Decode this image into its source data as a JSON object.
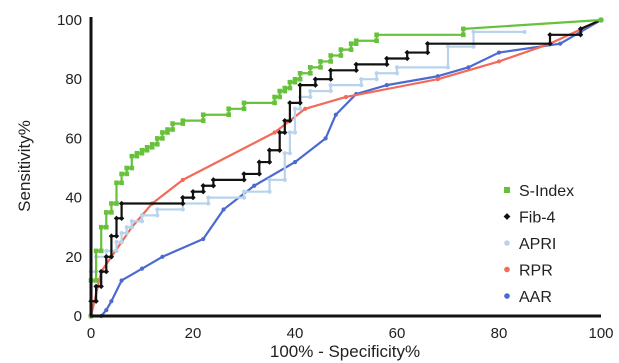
{
  "chart_data": {
    "type": "line",
    "title": "",
    "xlabel": "100% - Specificity%",
    "ylabel": "Sensitivity%",
    "xlim": [
      0,
      100
    ],
    "ylim": [
      0,
      100
    ],
    "x_ticks": [
      "0",
      "20",
      "40",
      "60",
      "80",
      "100"
    ],
    "y_ticks": [
      "0",
      "20",
      "40",
      "60",
      "80",
      "100"
    ],
    "grid": false,
    "legend_position": "bottom-right",
    "series": [
      {
        "name": "S-Index",
        "color": "#66c23a",
        "marker": "square",
        "step": true,
        "x": [
          0,
          0,
          1,
          1,
          2,
          2,
          3,
          3,
          4,
          4,
          5,
          5,
          6,
          6,
          7,
          7,
          8,
          8,
          9,
          9,
          10,
          10,
          11,
          11,
          12,
          12,
          13,
          13,
          14,
          14,
          15,
          15,
          16,
          16,
          18,
          18,
          22,
          22,
          27,
          27,
          30,
          30,
          36,
          36,
          37,
          37,
          38,
          38,
          39,
          39,
          40,
          40,
          41,
          41,
          43,
          43,
          45,
          45,
          47,
          47,
          49,
          49,
          51,
          51,
          52,
          52,
          56,
          56,
          73,
          73,
          100
        ],
        "y": [
          0,
          12,
          12,
          22,
          22,
          30,
          30,
          35,
          35,
          38,
          38,
          45,
          45,
          48,
          48,
          50,
          50,
          54,
          54,
          55,
          55,
          56,
          56,
          57,
          57,
          58,
          58,
          60,
          60,
          62,
          62,
          63,
          63,
          65,
          65,
          66,
          66,
          68,
          68,
          70,
          70,
          72,
          72,
          74,
          74,
          76,
          76,
          77,
          77,
          79,
          79,
          80,
          80,
          82,
          82,
          84,
          84,
          86,
          86,
          88,
          88,
          90,
          90,
          92,
          92,
          93,
          93,
          95,
          95,
          97,
          100
        ]
      },
      {
        "name": "Fib-4",
        "color": "#111111",
        "marker": "diamond",
        "step": true,
        "x": [
          0,
          0,
          1,
          1,
          2,
          2,
          3,
          3,
          4,
          4,
          5,
          5,
          6,
          6,
          18,
          18,
          20,
          20,
          22,
          22,
          24,
          24,
          30,
          30,
          33,
          33,
          35,
          35,
          37,
          37,
          38,
          38,
          39,
          39,
          41,
          41,
          44,
          44,
          47,
          47,
          52,
          52,
          58,
          58,
          62,
          62,
          66,
          66,
          90,
          90,
          96,
          96,
          100
        ],
        "y": [
          0,
          5,
          5,
          10,
          10,
          15,
          15,
          20,
          20,
          27,
          27,
          33,
          33,
          38,
          38,
          40,
          40,
          42,
          42,
          44,
          44,
          46,
          46,
          48,
          48,
          52,
          52,
          56,
          56,
          62,
          62,
          66,
          66,
          72,
          72,
          78,
          78,
          80,
          80,
          83,
          83,
          85,
          85,
          87,
          87,
          89,
          89,
          92,
          92,
          95,
          95,
          97,
          100
        ]
      },
      {
        "name": "APRI",
        "color": "#b9d3ec",
        "marker": "circle",
        "step": true,
        "x": [
          0,
          0,
          1,
          1,
          3,
          3,
          5,
          5,
          6,
          6,
          7,
          7,
          8,
          8,
          10,
          10,
          13,
          13,
          18,
          18,
          23,
          23,
          30,
          30,
          35,
          35,
          38,
          38,
          39,
          39,
          40,
          40,
          41,
          41,
          43,
          43,
          47,
          47,
          53,
          53,
          56,
          56,
          60,
          60,
          70,
          70,
          75,
          75,
          85
        ],
        "y": [
          0,
          15,
          15,
          20,
          20,
          22,
          22,
          25,
          25,
          28,
          28,
          30,
          30,
          32,
          32,
          34,
          34,
          36,
          36,
          38,
          38,
          40,
          40,
          42,
          42,
          46,
          46,
          55,
          55,
          62,
          62,
          70,
          70,
          74,
          74,
          76,
          76,
          78,
          78,
          80,
          80,
          82,
          82,
          84,
          84,
          91,
          91,
          96,
          96
        ]
      },
      {
        "name": "RPR",
        "color": "#f26a5a",
        "marker": "circle",
        "step": false,
        "x": [
          0,
          2,
          4,
          6,
          8,
          10,
          12,
          18,
          36,
          42,
          50,
          68,
          80,
          90,
          100
        ],
        "y": [
          0,
          15,
          20,
          25,
          30,
          34,
          38,
          46,
          62,
          70,
          74,
          80,
          86,
          92,
          100
        ]
      },
      {
        "name": "AAR",
        "color": "#4a6ad0",
        "marker": "circle",
        "step": false,
        "x": [
          0,
          2,
          3,
          4,
          6,
          10,
          14,
          22,
          26,
          32,
          40,
          46,
          48,
          52,
          58,
          68,
          74,
          80,
          92,
          96,
          100
        ],
        "y": [
          0,
          0,
          2,
          5,
          12,
          16,
          20,
          26,
          36,
          44,
          52,
          60,
          68,
          75,
          78,
          81,
          84,
          89,
          92,
          96,
          100
        ]
      }
    ]
  }
}
